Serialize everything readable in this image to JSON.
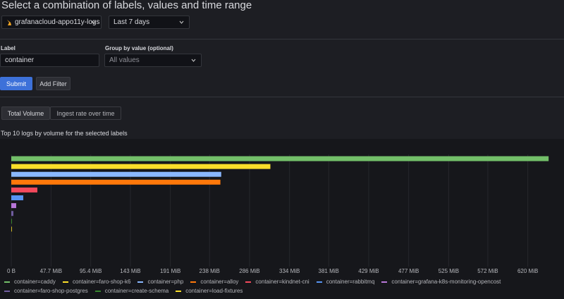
{
  "header": {
    "title": "Select a combination of labels, values and time range"
  },
  "datasource": "grafanacloud-appo11y-logs",
  "time_range": "Last 7 days",
  "label_field": {
    "label": "Label",
    "value": "container"
  },
  "group_by": {
    "label": "Group by value (optional)",
    "placeholder": "All values"
  },
  "buttons": {
    "submit": "Submit",
    "add_filter": "Add Filter"
  },
  "tabs": [
    "Total Volume",
    "Ingest rate over time"
  ],
  "chart_data": {
    "type": "bar",
    "orientation": "horizontal",
    "title": "Top 10 logs by volume for the selected labels",
    "categories": [
      "container=caddy",
      "container=faro-shop-k6",
      "container=php",
      "container=alloy",
      "container=kindnet-cni",
      "container=rabbitmq",
      "container=grafana-k8s-monitoring-opencost",
      "container=faro-shop-postgres",
      "container=create-schema",
      "container=load-fixtures"
    ],
    "values": [
      645,
      311,
      252,
      251,
      31.3,
      14.4,
      5.9,
      2.5,
      0.8,
      0.5
    ],
    "colors": [
      "#73bf69",
      "#fade2a",
      "#8ab8ff",
      "#ff780a",
      "#f2495c",
      "#5794f2",
      "#b877d9",
      "#705da0",
      "#37872d",
      "#fade2a"
    ],
    "xlim": [
      0,
      655
    ],
    "xticks": [
      {
        "value": 0,
        "label": "0 B"
      },
      {
        "value": 47.7,
        "label": "47.7 MiB"
      },
      {
        "value": 95.4,
        "label": "95.4 MiB"
      },
      {
        "value": 143,
        "label": "143 MiB"
      },
      {
        "value": 191,
        "label": "191 MiB"
      },
      {
        "value": 238,
        "label": "238 MiB"
      },
      {
        "value": 286,
        "label": "286 MiB"
      },
      {
        "value": 334,
        "label": "334 MiB"
      },
      {
        "value": 381,
        "label": "381 MiB"
      },
      {
        "value": 429,
        "label": "429 MiB"
      },
      {
        "value": 477,
        "label": "477 MiB"
      },
      {
        "value": 525,
        "label": "525 MiB"
      },
      {
        "value": 572,
        "label": "572 MiB"
      },
      {
        "value": 620,
        "label": "620 MiB"
      }
    ],
    "grid": true
  }
}
